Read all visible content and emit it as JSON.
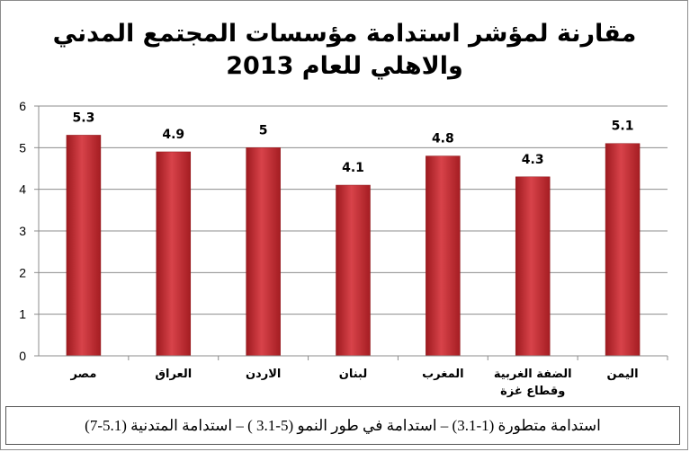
{
  "chart_data": {
    "type": "bar",
    "title_lines": [
      "مقارنة لمؤشر استدامة مؤسسات المجتمع المدني",
      "والاهلي للعام 2013"
    ],
    "categories": [
      "مصر",
      "العراق",
      "الاردن",
      "لبنان",
      "المغرب",
      "الضفة الغربية وقطاع غزة",
      "اليمن"
    ],
    "category_label_lines": [
      [
        "مصر"
      ],
      [
        "العراق"
      ],
      [
        "الاردن"
      ],
      [
        "لبنان"
      ],
      [
        "المغرب"
      ],
      [
        "الضفة الغربية",
        "وقطاع غزة"
      ],
      [
        "اليمن"
      ]
    ],
    "values": [
      5.3,
      4.9,
      5,
      4.1,
      4.8,
      4.3,
      5.1
    ],
    "value_labels": [
      "5.3",
      "4.9",
      "5",
      "4.1",
      "4.8",
      "4.3",
      "5.1"
    ],
    "ylim": [
      0,
      6
    ],
    "yticks": [
      0,
      1,
      2,
      3,
      4,
      5,
      6
    ],
    "grid": true,
    "legend": "none",
    "bar_color": "#c0282d"
  },
  "footnote": "استدامة متطورة (1-3.1) – استدامة في طور النمو (5-3.1 ) – استدامة المتدنية (5.1-7)"
}
